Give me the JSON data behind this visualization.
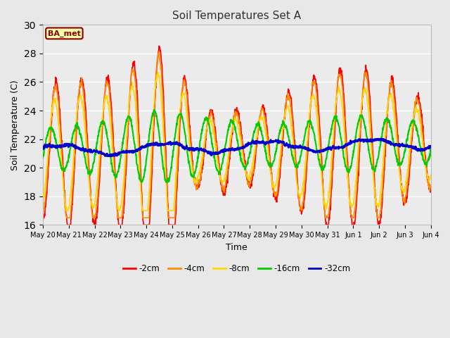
{
  "title": "Soil Temperatures Set A",
  "xlabel": "Time",
  "ylabel": "Soil Temperature (C)",
  "ylim": [
    16,
    30
  ],
  "yticks": [
    16,
    18,
    20,
    22,
    24,
    26,
    28,
    30
  ],
  "annotation_text": "BA_met",
  "annotation_color": "#8B0000",
  "annotation_bg": "#FFFFAA",
  "line_colors": {
    "-2cm": "#FF0000",
    "-4cm": "#FF8C00",
    "-8cm": "#FFD700",
    "-16cm": "#00CC00",
    "-32cm": "#0000CC"
  },
  "bg_color": "#E8E8E8",
  "plot_bg_color": "#EBEBEB",
  "grid_color": "#FFFFFF",
  "x_tick_labels": [
    "May 20",
    "May 21",
    "May 22",
    "May 23",
    "May 24",
    "May 25",
    "May 26",
    "May 27",
    "May 28",
    "May 29",
    "May 30",
    "May 31",
    "Jun 1",
    "Jun 2",
    "Jun 3",
    "Jun 4"
  ],
  "figsize": [
    6.4,
    4.8
  ],
  "dpi": 100
}
